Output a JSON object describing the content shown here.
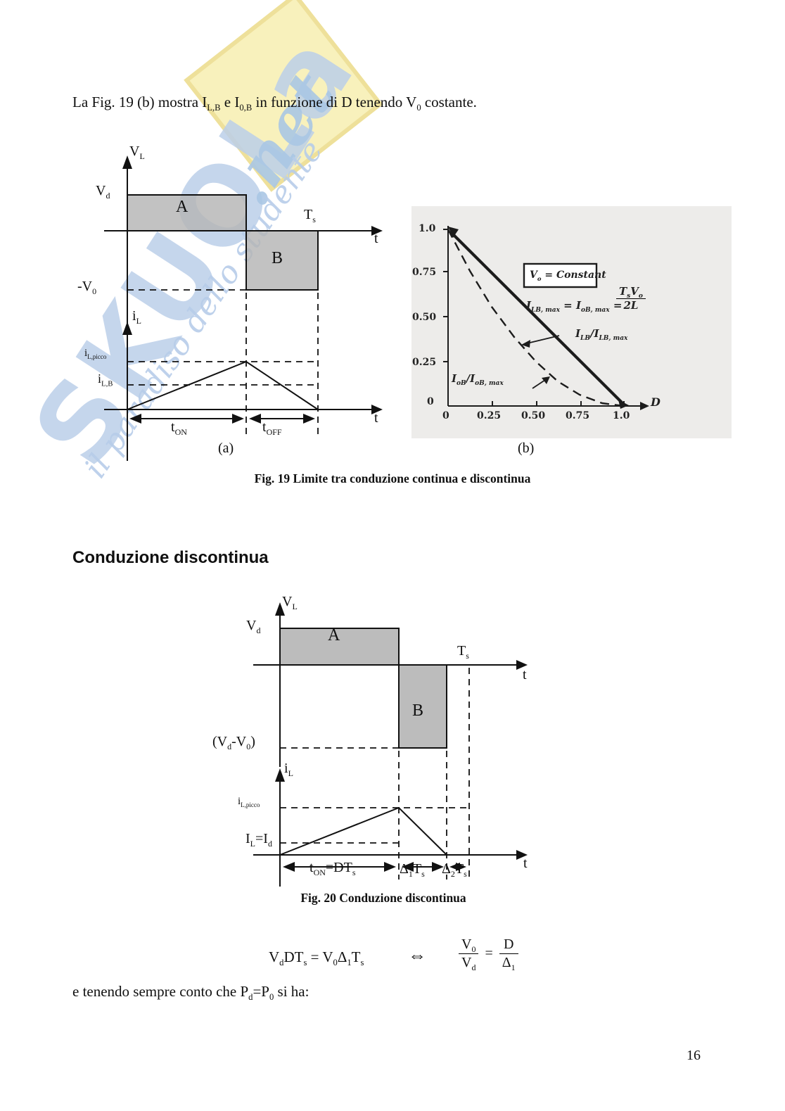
{
  "page": {
    "intro_text": "La Fig. 19 (b) mostra I~L,B~ e I~0,B~ in funzione di D tenendo V~0~ costante.",
    "heading": "Conduzione discontinua",
    "footer_text": "e tenendo sempre conto che P~d~=P~0~ si ha:",
    "page_number": "16"
  },
  "watermark": {
    "brand": "SKUOLa",
    "brand_suffix": ".net",
    "tagline": "il paradiso dello studente",
    "brand_color": "#bccfe9",
    "accent_yellow": "#f8f1bc"
  },
  "fig19": {
    "caption": "Fig. 19 Limite tra conduzione continua e discontinua",
    "sub_a_label": "(a)",
    "sub_b_label": "(b)",
    "a": {
      "vl_axis": "V~L~",
      "vd": "V~d~",
      "region_a": "A",
      "region_b": "B",
      "ts": "T~s~",
      "t_axis": "t",
      "neg_v0": "-V~0~",
      "il_axis": "i~L~",
      "il_peak": "i~L,picco~",
      "il_b": "i~L,B~",
      "t_on": "t~ON~",
      "t_off": "t~OFF~",
      "t_axis2": "t"
    },
    "b": {
      "box_label": "V~o~ = Constant",
      "equation_lhs": "I~LB, max~ = I~oB, max~ =",
      "equation_num": "T~s~V~o~",
      "equation_den": "2L",
      "solid_label": "I~LB~/I~LB, max~",
      "dashed_label": "I~oB~/I~oB, max~",
      "d_label": "D",
      "yticks": [
        "1.0",
        "0.75",
        "0.50",
        "0.25",
        "0"
      ],
      "xticks": [
        "0",
        "0.25",
        "0.50",
        "0.75",
        "1.0"
      ]
    }
  },
  "chart_data": {
    "type": "line",
    "title": "",
    "xlabel": "D",
    "ylabel": "",
    "xlim": [
      0,
      1.08
    ],
    "ylim": [
      0,
      1.05
    ],
    "x_ticks": [
      0,
      0.25,
      0.5,
      0.75,
      1.0
    ],
    "y_ticks": [
      0,
      0.25,
      0.5,
      0.75,
      1.0
    ],
    "grid": false,
    "legend_position": "inline-annotations",
    "annotation_box": "V_o = Constant",
    "annotation_equation": "I_LB,max = I_oB,max = T_s V_o / (2L)",
    "series": [
      {
        "name": "I_LB/I_LB,max",
        "style": "solid",
        "x": [
          0,
          0.25,
          0.5,
          0.75,
          1.0
        ],
        "y": [
          1.0,
          0.75,
          0.5,
          0.25,
          0.0
        ]
      },
      {
        "name": "I_oB/I_oB,max",
        "style": "dashed",
        "x": [
          0,
          0.125,
          0.25,
          0.375,
          0.5,
          0.625,
          0.75,
          0.875,
          1.0
        ],
        "y": [
          1.0,
          0.766,
          0.563,
          0.391,
          0.25,
          0.141,
          0.063,
          0.016,
          0.0
        ]
      }
    ]
  },
  "fig20": {
    "caption": "Fig. 20 Conduzione discontinua",
    "vl_axis": "V~L~",
    "vd": "V~d~",
    "region_a": "A",
    "region_b": "B",
    "ts": "T~s~",
    "t_axis": "t",
    "vd_minus_v0": "(V~d~-V~0~)",
    "il_axis": "i~L~",
    "il_peak": "i~L,picco~",
    "il_id": "I~L~=I~d~",
    "t_on": "t~ON~=DT~s~",
    "delta1": "Δ~1~T~s~",
    "delta2": "Δ~2~T~s~",
    "t_axis2": "t"
  },
  "equation": {
    "lhs": "V~d~DT~s~ = V~0~Δ~1~T~s~",
    "iff": "⇔",
    "frac1_num": "V~0~",
    "frac1_den": "V~d~",
    "equals": "=",
    "frac2_num": "D",
    "frac2_den": "Δ~1~"
  },
  "colors": {
    "region_fill": "#b5b5b5",
    "scan_background": "#edecea",
    "ink": "#111111"
  }
}
